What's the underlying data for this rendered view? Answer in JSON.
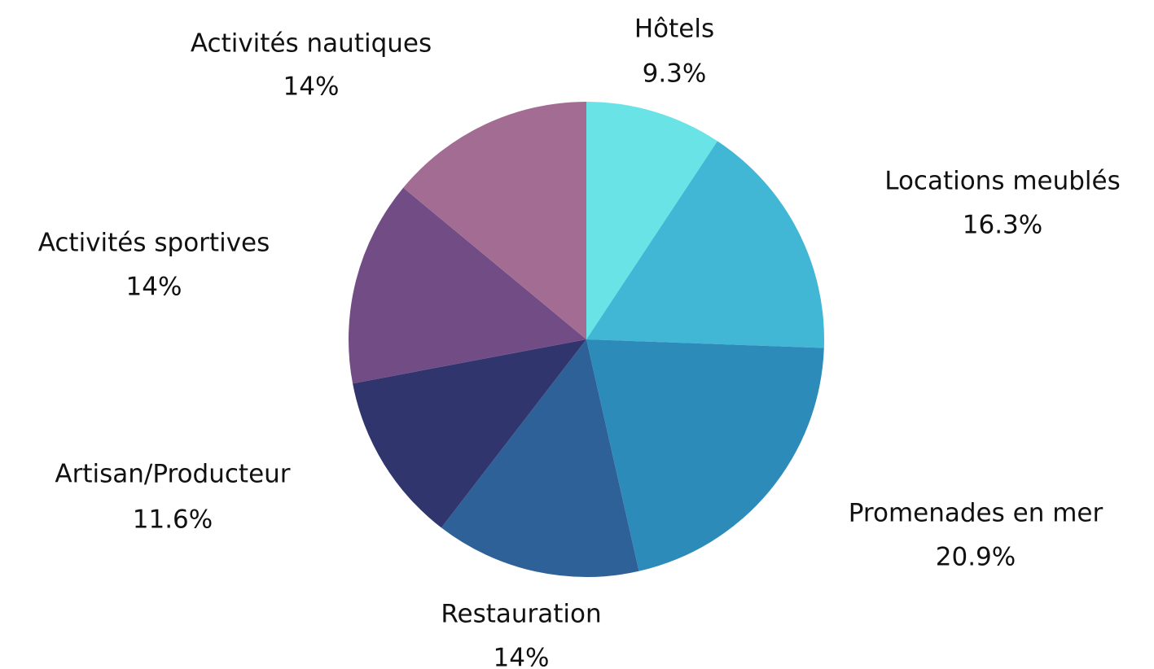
{
  "chart_data": {
    "type": "pie",
    "categories": [
      "Hôtels",
      "Locations meublés",
      "Promenades en mer",
      "Restauration",
      "Artisan/Producteur",
      "Activités sportives",
      "Activités nautiques"
    ],
    "values": [
      9.3,
      16.3,
      20.9,
      14,
      11.6,
      14,
      14
    ],
    "value_labels": [
      "9.3%",
      "16.3%",
      "20.9%",
      "14%",
      "11.6%",
      "14%",
      "14%"
    ],
    "colors": [
      "#6ae3e7",
      "#42b6d5",
      "#2d8bba",
      "#2f6199",
      "#31356e",
      "#724c84",
      "#a36d93"
    ]
  }
}
